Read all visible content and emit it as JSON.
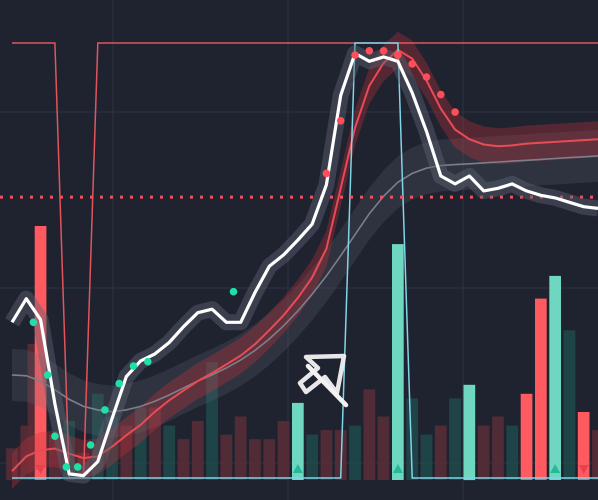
{
  "theme": {
    "background": "#1f2330",
    "grid": "#2e3342",
    "price_line": "#ffffff",
    "price_shadow": "#5d6170",
    "ma_red": "#e94b55",
    "ma_grey": "#7d808b",
    "band_red": "#c7323c",
    "band_grey": "#6b6e79",
    "bull_dot": "#1fe0a6",
    "bear_dot": "#ff4d5a",
    "oscillator_red": "#e4545c",
    "oscillator_cyan": "#7fd6e8",
    "level_line": "#f0505c",
    "volume_red_bright": "#ff5a5f",
    "volume_teal_bright": "#6fd6c0",
    "volume_red_dim": "#5a2d36",
    "volume_teal_dim": "#1f4a4c",
    "cursor": "#f4f1f3",
    "triangle_teal": "#29b79a",
    "triangle_red": "#e8414e"
  },
  "icons": {
    "cursor": "cursor-arrow-icon",
    "up_marker": "triangle-up-icon",
    "down_marker": "triangle-down-icon"
  },
  "chart_data": {
    "type": "line",
    "title": "",
    "xlabel": "",
    "ylabel": "",
    "grid": true,
    "legend": "none",
    "ylim": [
      0,
      100
    ],
    "x": [
      0,
      1,
      2,
      3,
      4,
      5,
      6,
      7,
      8,
      9,
      10,
      11,
      12,
      13,
      14,
      15,
      16,
      17,
      18,
      19,
      20,
      21,
      22,
      23,
      24,
      25,
      26,
      27,
      28,
      29,
      30,
      31,
      32,
      33,
      34,
      35,
      36,
      37,
      38,
      39,
      40,
      41
    ],
    "series": [
      {
        "role": "price",
        "values": [
          36.0,
          41.4,
          36.6,
          17.4,
          1.4,
          1.0,
          4.2,
          14.0,
          23.6,
          27.2,
          28.8,
          31.4,
          35.0,
          38.2,
          39.0,
          36.0,
          36.0,
          42.8,
          48.8,
          51.4,
          54.8,
          58.4,
          67.4,
          87.8,
          97.4,
          95.6,
          96.6,
          95.6,
          88.4,
          79.6,
          69.4,
          67.6,
          69.4,
          66.0,
          66.6,
          67.6,
          66.0,
          65.0,
          64.4,
          63.4,
          62.4,
          62.0
        ]
      },
      {
        "role": "fast-ma",
        "values": [
          2.0,
          5.4,
          6.8,
          7.2,
          6.0,
          5.0,
          5.4,
          7.6,
          10.2,
          12.6,
          15.6,
          18.2,
          20.4,
          22.6,
          24.4,
          26.4,
          28.4,
          31.0,
          34.2,
          37.6,
          41.6,
          46.2,
          52.8,
          66.6,
          80.4,
          90.0,
          95.2,
          98.2,
          96.2,
          91.2,
          84.8,
          80.0,
          77.8,
          76.6,
          76.2,
          76.4,
          76.8,
          77.0,
          77.2,
          77.4,
          77.6,
          77.8
        ]
      },
      {
        "role": "slow-ma",
        "values": [
          24.0,
          23.8,
          22.6,
          20.6,
          18.4,
          16.8,
          16.0,
          15.6,
          16.0,
          16.8,
          18.0,
          19.4,
          21.0,
          22.6,
          24.0,
          25.6,
          27.4,
          29.6,
          32.2,
          35.2,
          38.6,
          42.4,
          46.6,
          51.2,
          56.0,
          60.8,
          64.8,
          68.0,
          70.0,
          71.2,
          71.8,
          72.0,
          72.2,
          72.4,
          72.6,
          72.8,
          73.0,
          73.2,
          73.4,
          73.6,
          73.8,
          74.0
        ]
      },
      {
        "role": "buy-signals",
        "points": [
          [
            1.5,
            36.0
          ],
          [
            2.5,
            24.0
          ],
          [
            3.0,
            10.0
          ],
          [
            3.8,
            3.0
          ],
          [
            4.6,
            3.0
          ],
          [
            5.5,
            8.0
          ],
          [
            6.5,
            16.0
          ],
          [
            7.5,
            22.0
          ],
          [
            8.5,
            26.0
          ],
          [
            9.5,
            27.0
          ],
          [
            15.5,
            43.0
          ]
        ]
      },
      {
        "role": "sell-signals",
        "points": [
          [
            22.0,
            70.0
          ],
          [
            23.0,
            82.0
          ],
          [
            24.0,
            97.0
          ],
          [
            25.0,
            98.0
          ],
          [
            26.0,
            98.0
          ],
          [
            27.0,
            97.0
          ],
          [
            28.0,
            95.0
          ],
          [
            29.0,
            92.0
          ],
          [
            30.0,
            88.0
          ],
          [
            31.0,
            84.0
          ]
        ]
      },
      {
        "role": "oscillator-red",
        "values": [
          100,
          100,
          100,
          100,
          0,
          0,
          100,
          100,
          100,
          100,
          100,
          100,
          100,
          100,
          100,
          100,
          100,
          100,
          100,
          100,
          100,
          100,
          100,
          100,
          100,
          100,
          100,
          100,
          100,
          100,
          100,
          100,
          100,
          100,
          100,
          100,
          100,
          100,
          100,
          100,
          100,
          100
        ]
      },
      {
        "role": "oscillator-cyan",
        "values": [
          0,
          0,
          0,
          0,
          0,
          0,
          0,
          0,
          0,
          0,
          0,
          0,
          0,
          0,
          0,
          0,
          0,
          0,
          0,
          0,
          0,
          0,
          0,
          0,
          100,
          100,
          100,
          100,
          0,
          0,
          0,
          0,
          0,
          0,
          0,
          0,
          0,
          0,
          0,
          0,
          0,
          0
        ]
      }
    ],
    "reference_line": 64.6,
    "volume": [
      {
        "x": 0,
        "v": 7,
        "dir": "down"
      },
      {
        "x": 1,
        "v": 12,
        "dir": "down"
      },
      {
        "x": 1.5,
        "v": 30,
        "dir": "down"
      },
      {
        "x": 2,
        "v": 56,
        "dir": "down",
        "highlight": true,
        "marker": "down"
      },
      {
        "x": 3,
        "v": 10,
        "dir": "down"
      },
      {
        "x": 4,
        "v": 13,
        "dir": "up"
      },
      {
        "x": 5,
        "v": 6,
        "dir": "down"
      },
      {
        "x": 6,
        "v": 19,
        "dir": "up"
      },
      {
        "x": 7,
        "v": 14,
        "dir": "up"
      },
      {
        "x": 8,
        "v": 12,
        "dir": "down"
      },
      {
        "x": 9,
        "v": 16,
        "dir": "up"
      },
      {
        "x": 10,
        "v": 16,
        "dir": "down"
      },
      {
        "x": 11,
        "v": 12,
        "dir": "up"
      },
      {
        "x": 12,
        "v": 9,
        "dir": "down"
      },
      {
        "x": 13,
        "v": 13,
        "dir": "down"
      },
      {
        "x": 14,
        "v": 26,
        "dir": "up"
      },
      {
        "x": 15,
        "v": 10,
        "dir": "down"
      },
      {
        "x": 16,
        "v": 14,
        "dir": "down"
      },
      {
        "x": 17,
        "v": 9,
        "dir": "down"
      },
      {
        "x": 18,
        "v": 9,
        "dir": "down"
      },
      {
        "x": 19,
        "v": 13,
        "dir": "down"
      },
      {
        "x": 20,
        "v": 17,
        "dir": "up",
        "highlight": true,
        "marker": "up"
      },
      {
        "x": 21,
        "v": 10,
        "dir": "up"
      },
      {
        "x": 22,
        "v": 11,
        "dir": "down"
      },
      {
        "x": 23,
        "v": 11,
        "dir": "down"
      },
      {
        "x": 24,
        "v": 12,
        "dir": "up"
      },
      {
        "x": 25,
        "v": 20,
        "dir": "down"
      },
      {
        "x": 26,
        "v": 14,
        "dir": "down"
      },
      {
        "x": 27,
        "v": 52,
        "dir": "up",
        "highlight": true,
        "marker": "up"
      },
      {
        "x": 28,
        "v": 18,
        "dir": "up"
      },
      {
        "x": 29,
        "v": 10,
        "dir": "up"
      },
      {
        "x": 30,
        "v": 12,
        "dir": "down"
      },
      {
        "x": 31,
        "v": 18,
        "dir": "up"
      },
      {
        "x": 32,
        "v": 21,
        "dir": "up",
        "highlight": true
      },
      {
        "x": 33,
        "v": 12,
        "dir": "down"
      },
      {
        "x": 34,
        "v": 14,
        "dir": "down"
      },
      {
        "x": 35,
        "v": 12,
        "dir": "up"
      },
      {
        "x": 36,
        "v": 19,
        "dir": "down",
        "highlight": true
      },
      {
        "x": 37,
        "v": 40,
        "dir": "down",
        "highlight": true
      },
      {
        "x": 38,
        "v": 45,
        "dir": "up",
        "highlight": true,
        "marker": "up"
      },
      {
        "x": 39,
        "v": 33,
        "dir": "up"
      },
      {
        "x": 40,
        "v": 15,
        "dir": "down",
        "highlight": true,
        "marker": "down"
      },
      {
        "x": 41,
        "v": 11,
        "dir": "down"
      }
    ]
  }
}
